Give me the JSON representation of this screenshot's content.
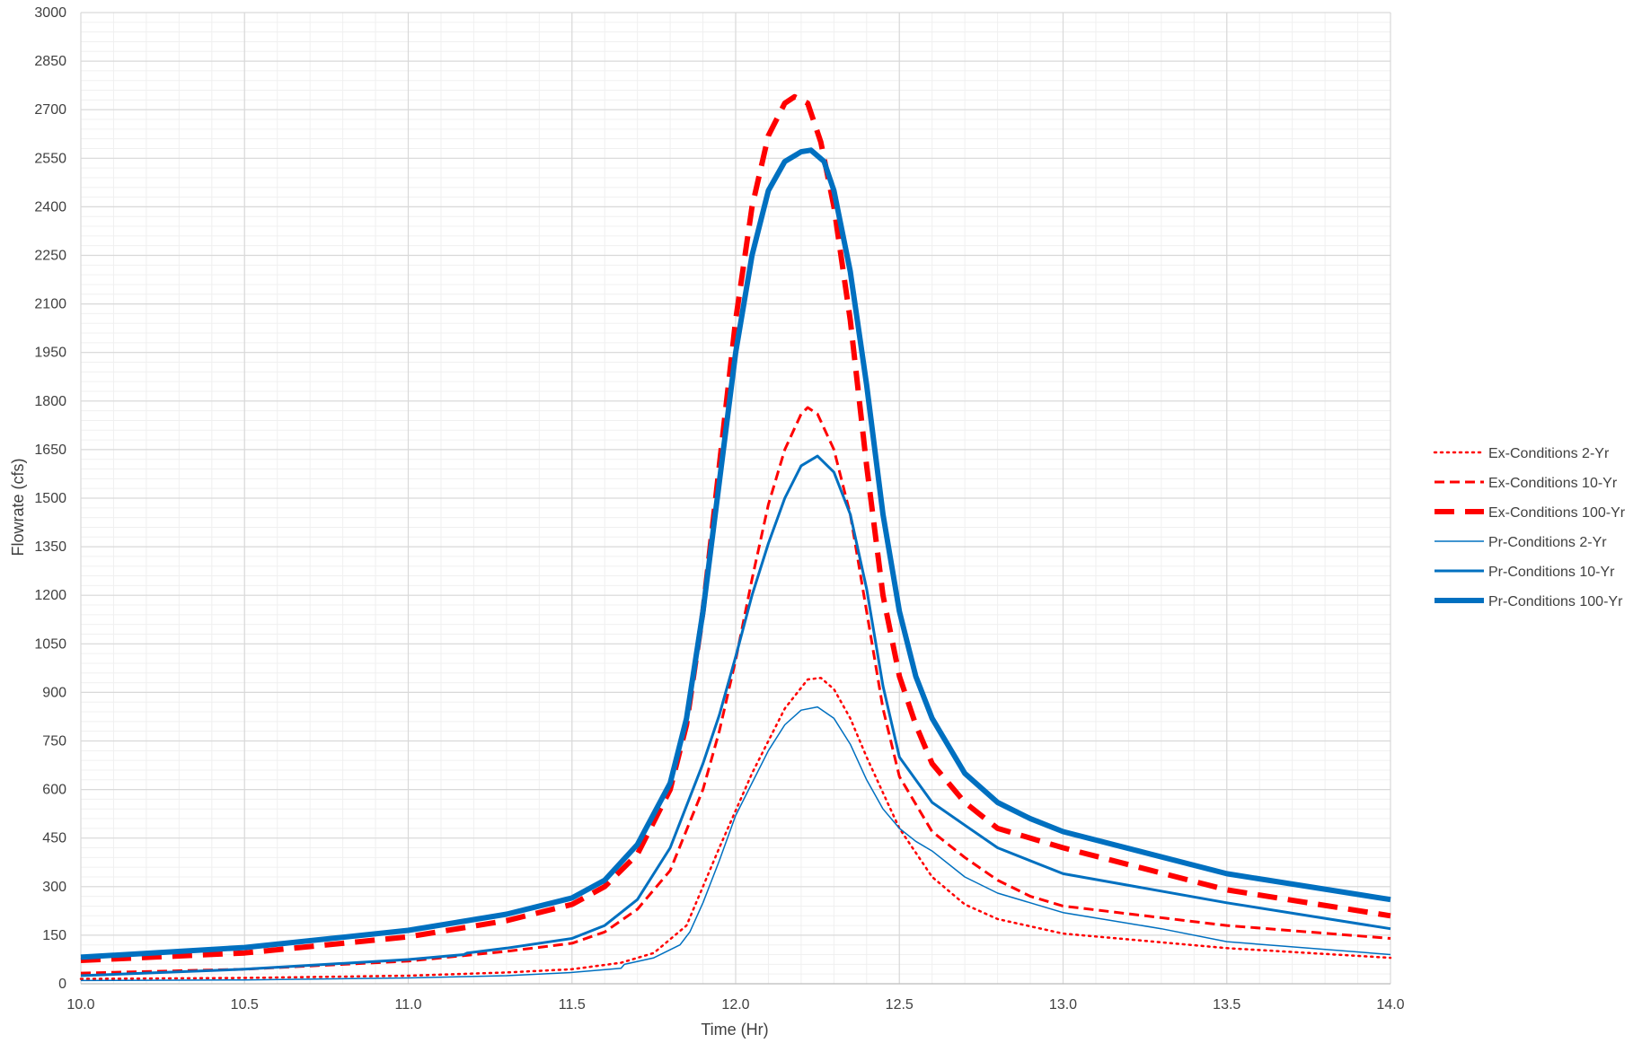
{
  "chart_data": {
    "type": "line",
    "title": "",
    "xlabel": "Time (Hr)",
    "ylabel": "Flowrate (cfs)",
    "xlim": [
      10.0,
      14.0
    ],
    "ylim": [
      0,
      3000
    ],
    "x_ticks": [
      "10.0",
      "10.5",
      "11.0",
      "11.5",
      "12.0",
      "12.5",
      "13.0",
      "13.5",
      "14.0"
    ],
    "y_ticks": [
      "0",
      "150",
      "300",
      "450",
      "600",
      "750",
      "900",
      "1050",
      "1200",
      "1350",
      "1500",
      "1650",
      "1800",
      "1950",
      "2100",
      "2250",
      "2400",
      "2550",
      "2700",
      "2850",
      "3000"
    ],
    "x_tick_values": [
      10.0,
      10.5,
      11.0,
      11.5,
      12.0,
      12.5,
      13.0,
      13.5,
      14.0
    ],
    "y_tick_values": [
      0,
      150,
      300,
      450,
      600,
      750,
      900,
      1050,
      1200,
      1350,
      1500,
      1650,
      1800,
      1950,
      2100,
      2250,
      2400,
      2550,
      2700,
      2850,
      3000
    ],
    "grid": {
      "major": true,
      "minor": true
    },
    "legend_position": "right",
    "series": [
      {
        "name": "Ex-Conditions 2-Yr",
        "color": "#FF0000",
        "style": "dotted",
        "weight": "thin",
        "x": [
          10.0,
          10.5,
          11.0,
          11.3,
          11.5,
          11.65,
          11.75,
          11.85,
          11.95,
          12.05,
          12.15,
          12.22,
          12.26,
          12.3,
          12.35,
          12.4,
          12.45,
          12.5,
          12.6,
          12.7,
          12.8,
          13.0,
          13.5,
          14.0
        ],
        "y": [
          15,
          18,
          25,
          35,
          45,
          65,
          95,
          180,
          420,
          650,
          850,
          940,
          945,
          910,
          820,
          700,
          590,
          480,
          330,
          245,
          200,
          155,
          110,
          80
        ]
      },
      {
        "name": "Ex-Conditions 10-Yr",
        "color": "#FF0000",
        "style": "dashed",
        "weight": "medium",
        "x": [
          10.0,
          10.5,
          11.0,
          11.3,
          11.5,
          11.6,
          11.7,
          11.8,
          11.9,
          11.95,
          12.0,
          12.05,
          12.1,
          12.15,
          12.2,
          12.22,
          12.25,
          12.3,
          12.35,
          12.4,
          12.45,
          12.5,
          12.6,
          12.7,
          12.8,
          12.9,
          13.0,
          13.5,
          14.0
        ],
        "y": [
          33,
          45,
          70,
          100,
          125,
          160,
          230,
          350,
          600,
          780,
          1000,
          1250,
          1480,
          1650,
          1760,
          1780,
          1760,
          1650,
          1450,
          1150,
          850,
          640,
          470,
          390,
          320,
          270,
          240,
          180,
          140
        ]
      },
      {
        "name": "Ex-Conditions 100-Yr",
        "color": "#FF0000",
        "style": "dashed",
        "weight": "thick",
        "x": [
          10.0,
          10.5,
          11.0,
          11.3,
          11.5,
          11.6,
          11.7,
          11.8,
          11.85,
          11.9,
          11.95,
          12.0,
          12.05,
          12.1,
          12.15,
          12.18,
          12.22,
          12.26,
          12.3,
          12.35,
          12.4,
          12.45,
          12.5,
          12.55,
          12.6,
          12.7,
          12.8,
          13.0,
          13.5,
          14.0
        ],
        "y": [
          72,
          95,
          145,
          195,
          245,
          300,
          400,
          600,
          800,
          1150,
          1600,
          2050,
          2400,
          2620,
          2720,
          2740,
          2720,
          2600,
          2400,
          2050,
          1600,
          1200,
          950,
          800,
          680,
          560,
          480,
          420,
          290,
          210
        ]
      },
      {
        "name": "Pr-Conditions 2-Yr",
        "color": "#0070C0",
        "style": "solid",
        "weight": "thin",
        "x": [
          10.0,
          10.5,
          11.0,
          11.3,
          11.5,
          11.65,
          11.66,
          11.75,
          11.83,
          11.86,
          11.9,
          11.95,
          12.0,
          12.05,
          12.1,
          12.15,
          12.2,
          12.25,
          12.3,
          12.35,
          12.4,
          12.45,
          12.5,
          12.55,
          12.6,
          12.7,
          12.8,
          13.0,
          13.3,
          13.5,
          14.0
        ],
        "y": [
          10,
          12,
          18,
          25,
          35,
          48,
          60,
          80,
          120,
          160,
          250,
          380,
          520,
          620,
          720,
          800,
          845,
          855,
          820,
          740,
          630,
          540,
          480,
          440,
          410,
          330,
          280,
          220,
          170,
          130,
          90
        ]
      },
      {
        "name": "Pr-Conditions 10-Yr",
        "color": "#0070C0",
        "style": "solid",
        "weight": "medium",
        "x": [
          10.0,
          10.5,
          11.0,
          11.17,
          11.18,
          11.3,
          11.5,
          11.6,
          11.7,
          11.8,
          11.9,
          11.95,
          12.0,
          12.05,
          12.1,
          12.15,
          12.2,
          12.25,
          12.3,
          12.35,
          12.4,
          12.45,
          12.5,
          12.6,
          12.7,
          12.8,
          13.0,
          13.5,
          14.0
        ],
        "y": [
          25,
          45,
          75,
          90,
          95,
          110,
          140,
          180,
          260,
          420,
          680,
          830,
          1010,
          1200,
          1360,
          1500,
          1600,
          1630,
          1580,
          1450,
          1220,
          920,
          700,
          560,
          490,
          420,
          340,
          250,
          170
        ]
      },
      {
        "name": "Pr-Conditions 100-Yr",
        "color": "#0070C0",
        "style": "solid",
        "weight": "thick",
        "x": [
          10.0,
          10.5,
          11.0,
          11.3,
          11.5,
          11.6,
          11.7,
          11.8,
          11.85,
          11.9,
          11.95,
          12.0,
          12.05,
          12.1,
          12.15,
          12.2,
          12.23,
          12.27,
          12.3,
          12.35,
          12.4,
          12.45,
          12.5,
          12.55,
          12.6,
          12.7,
          12.8,
          12.9,
          13.0,
          13.5,
          14.0
        ],
        "y": [
          82,
          112,
          165,
          215,
          265,
          320,
          430,
          620,
          820,
          1150,
          1550,
          1950,
          2250,
          2450,
          2540,
          2570,
          2575,
          2540,
          2450,
          2200,
          1850,
          1450,
          1150,
          950,
          820,
          650,
          560,
          510,
          470,
          340,
          260
        ]
      }
    ]
  }
}
